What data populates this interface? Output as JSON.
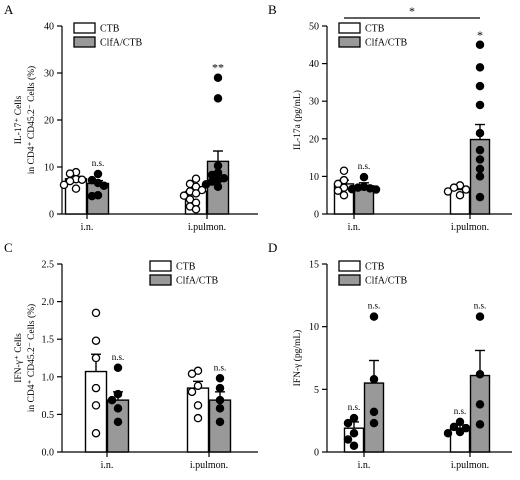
{
  "chart_data": [
    {
      "type": "bar",
      "panel": "A",
      "categories": [
        "i.n.",
        "i.pulmon."
      ],
      "ylabel_lines": [
        "IL-17⁺ Cells",
        "in CD4⁺ CD45.2⁻ Cells (%)"
      ],
      "ylim": [
        0,
        40
      ],
      "yticks": [
        0,
        10,
        20,
        30,
        40
      ],
      "legend": [
        "CTB",
        "ClfA/CTB"
      ],
      "legend_position": "top-left",
      "series": [
        {
          "name": "CTB",
          "fill": "#ffffff",
          "marker": "open-circle",
          "values": [
            7.5,
            4.8
          ],
          "sem": [
            0.5,
            0.7
          ],
          "points": [
            [
              8.9,
              8.6,
              7.4,
              7.3,
              7.0,
              6.2,
              5.4
            ],
            [
              7.5,
              6.4,
              5.8,
              5.1,
              4.8,
              4.4,
              3.9,
              3.1,
              2.4,
              1.6,
              1.0
            ]
          ]
        },
        {
          "name": "ClfA/CTB",
          "fill": "#999999",
          "marker": "filled-circle",
          "values": [
            6.5,
            11.2
          ],
          "sem": [
            0.6,
            2.2
          ],
          "points": [
            [
              8.5,
              7.2,
              6.6,
              6.0,
              4.0,
              3.8
            ],
            [
              29.0,
              24.6,
              10.3,
              8.8,
              8.3,
              7.6,
              7.2,
              6.9,
              6.3,
              5.8
            ]
          ]
        }
      ],
      "annotations": [
        {
          "series": "ClfA/CTB",
          "category": "i.n.",
          "text": "n.s."
        },
        {
          "series": "ClfA/CTB",
          "category": "i.pulmon.",
          "text": "**"
        }
      ]
    },
    {
      "type": "bar",
      "panel": "B",
      "categories": [
        "i.n.",
        "i.pulmon."
      ],
      "ylabel_lines": [
        "IL-17a (pg/mL)"
      ],
      "ylim": [
        0,
        50
      ],
      "yticks": [
        0,
        10,
        20,
        30,
        40,
        50
      ],
      "legend": [
        "CTB",
        "ClfA/CTB"
      ],
      "legend_position": "top-left",
      "series": [
        {
          "name": "CTB",
          "fill": "#ffffff",
          "marker": "open-circle",
          "values": [
            8.0,
            6.5
          ],
          "sem": [
            1.0,
            0.5
          ],
          "points": [
            [
              11.5,
              9.0,
              8.0,
              7.0,
              6.2,
              5.0
            ],
            [
              7.6,
              7.0,
              6.5,
              6.0,
              5.0
            ]
          ]
        },
        {
          "name": "ClfA/CTB",
          "fill": "#999999",
          "marker": "filled-circle",
          "values": [
            7.5,
            19.8
          ],
          "sem": [
            0.8,
            4.0
          ],
          "points": [
            [
              9.8,
              7.2,
              7.0,
              6.8,
              6.6,
              6.5
            ],
            [
              45.0,
              39.0,
              34.0,
              29.0,
              21.5,
              17.0,
              14.5,
              12.0,
              10.0,
              4.5
            ]
          ]
        }
      ],
      "annotations": [
        {
          "series": "ClfA/CTB",
          "category": "i.n.",
          "text": "n.s."
        },
        {
          "series": "ClfA/CTB",
          "category": "i.pulmon.",
          "text": "*"
        }
      ],
      "bracket": {
        "from": "CTB@i.n.",
        "to": "ClfA/CTB@i.pulmon.",
        "text": "*"
      }
    },
    {
      "type": "bar",
      "panel": "C",
      "categories": [
        "i.n.",
        "i.pulmon."
      ],
      "ylabel_lines": [
        "IFN-γ⁺ Cells",
        "in CD4⁺ CD45.2⁻ Cells (%)"
      ],
      "ylim": [
        0,
        2.5
      ],
      "yticks": [
        0.0,
        0.5,
        1.0,
        1.5,
        2.0,
        2.5
      ],
      "legend": [
        "CTB",
        "ClfA/CTB"
      ],
      "legend_position": "top-right",
      "series": [
        {
          "name": "CTB",
          "fill": "#ffffff",
          "marker": "open-circle",
          "values": [
            1.07,
            0.85
          ],
          "sem": [
            0.23,
            0.09
          ],
          "points": [
            [
              1.85,
              1.48,
              1.25,
              0.85,
              0.62,
              0.25
            ],
            [
              1.08,
              1.04,
              0.88,
              0.8,
              0.62,
              0.45
            ]
          ]
        },
        {
          "name": "ClfA/CTB",
          "fill": "#999999",
          "marker": "filled-circle",
          "values": [
            0.69,
            0.69
          ],
          "sem": [
            0.11,
            0.11
          ],
          "points": [
            [
              1.12,
              0.77,
              0.69,
              0.58,
              0.4
            ],
            [
              0.98,
              0.85,
              0.69,
              0.58,
              0.4
            ]
          ]
        }
      ],
      "annotations": [
        {
          "series": "ClfA/CTB",
          "category": "i.n.",
          "text": "n.s."
        },
        {
          "series": "ClfA/CTB",
          "category": "i.pulmon.",
          "text": "n.s."
        }
      ]
    },
    {
      "type": "bar",
      "panel": "D",
      "categories": [
        "i.n.",
        "i.pulmon."
      ],
      "ylabel_lines": [
        "IFN-γ (pg/mL)"
      ],
      "ylim": [
        0,
        15
      ],
      "yticks": [
        0,
        5,
        10,
        15
      ],
      "legend": [
        "CTB",
        "ClfA/CTB"
      ],
      "legend_position": "top-left",
      "series": [
        {
          "name": "CTB",
          "fill": "#ffffff",
          "marker": "filled-circle",
          "values": [
            1.9,
            1.9
          ],
          "sem": [
            0.5,
            0.25
          ],
          "points": [
            [
              2.7,
              2.3,
              1.5,
              1.0,
              0.5
            ],
            [
              2.4,
              2.0,
              1.9,
              1.6,
              1.5
            ]
          ]
        },
        {
          "name": "ClfA/CTB",
          "fill": "#999999",
          "marker": "filled-circle",
          "values": [
            5.5,
            6.1
          ],
          "sem": [
            1.8,
            2.0
          ],
          "points": [
            [
              10.8,
              5.8,
              3.2,
              2.3
            ],
            [
              10.8,
              6.2,
              3.8,
              2.2
            ]
          ]
        }
      ],
      "annotations": [
        {
          "series": "CTB",
          "category": "i.n.",
          "text": "n.s."
        },
        {
          "series": "ClfA/CTB",
          "category": "i.n.",
          "text": "n.s."
        },
        {
          "series": "CTB",
          "category": "i.pulmon.",
          "text": "n.s."
        },
        {
          "series": "ClfA/CTB",
          "category": "i.pulmon.",
          "text": "n.s."
        }
      ]
    }
  ]
}
